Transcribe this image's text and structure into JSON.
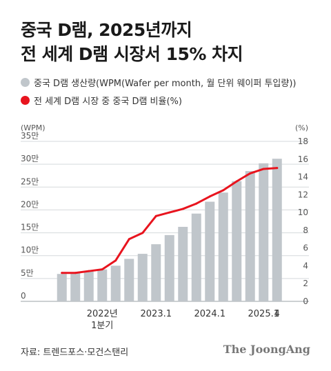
{
  "title": {
    "line1": "중국 D램, 2025년까지",
    "line2": "전 세계 D램 시장서 15% 차지"
  },
  "legend": [
    {
      "label": "중국 D램 생산량(WPM(Wafer per month, 월 단위 웨이퍼 투입량))",
      "color": "#c0c6cb",
      "icon": "gray-circle"
    },
    {
      "label": "전 세계 D램 시장 중 중국 D램 비율(%)",
      "color": "#e8141e",
      "icon": "red-circle"
    }
  ],
  "chart_data": {
    "type": "bar+line",
    "left_axis": {
      "unit_label": "(WPM)",
      "ticks": [
        "0",
        "5만",
        "10만",
        "15만",
        "20만",
        "25만",
        "30만",
        "35만"
      ],
      "tick_values": [
        0,
        50000,
        100000,
        150000,
        200000,
        250000,
        300000,
        350000
      ],
      "ylim": [
        0,
        350000
      ]
    },
    "right_axis": {
      "unit_label": "(%)",
      "ticks": [
        "0",
        "2",
        "4",
        "6",
        "8",
        "10",
        "12",
        "14",
        "16",
        "18"
      ],
      "tick_values": [
        0,
        2,
        4,
        6,
        8,
        10,
        12,
        14,
        16,
        18
      ],
      "ylim": [
        0,
        18
      ]
    },
    "x_labels": [
      {
        "index": 3,
        "lines": [
          "2022년",
          "1분기"
        ]
      },
      {
        "index": 7,
        "lines": [
          "2023.1"
        ]
      },
      {
        "index": 11,
        "lines": [
          "2024.1"
        ]
      },
      {
        "index": 15,
        "lines": [
          "2025.1"
        ]
      },
      {
        "index": 16,
        "lines": [
          "4"
        ]
      }
    ],
    "series": [
      {
        "name": "중국 D램 생산량",
        "type": "bar",
        "axis": "left",
        "values": [
          60000,
          63000,
          65000,
          70000,
          78000,
          93000,
          104000,
          125000,
          145000,
          163000,
          192000,
          218000,
          238000,
          263000,
          285000,
          302000,
          312000
        ]
      },
      {
        "name": "전 세계 D램 시장 중 중국 D램 비율",
        "type": "line",
        "axis": "right",
        "values": [
          3.2,
          3.2,
          3.4,
          3.6,
          4.6,
          7.0,
          7.7,
          9.6,
          10.0,
          10.4,
          11.0,
          11.8,
          12.5,
          13.5,
          14.4,
          14.9,
          15.0
        ]
      }
    ],
    "grid": true,
    "legend_position": "top-left"
  },
  "source": "자료: 트렌드포스·모건스탠리",
  "brand": "The JoongAng"
}
